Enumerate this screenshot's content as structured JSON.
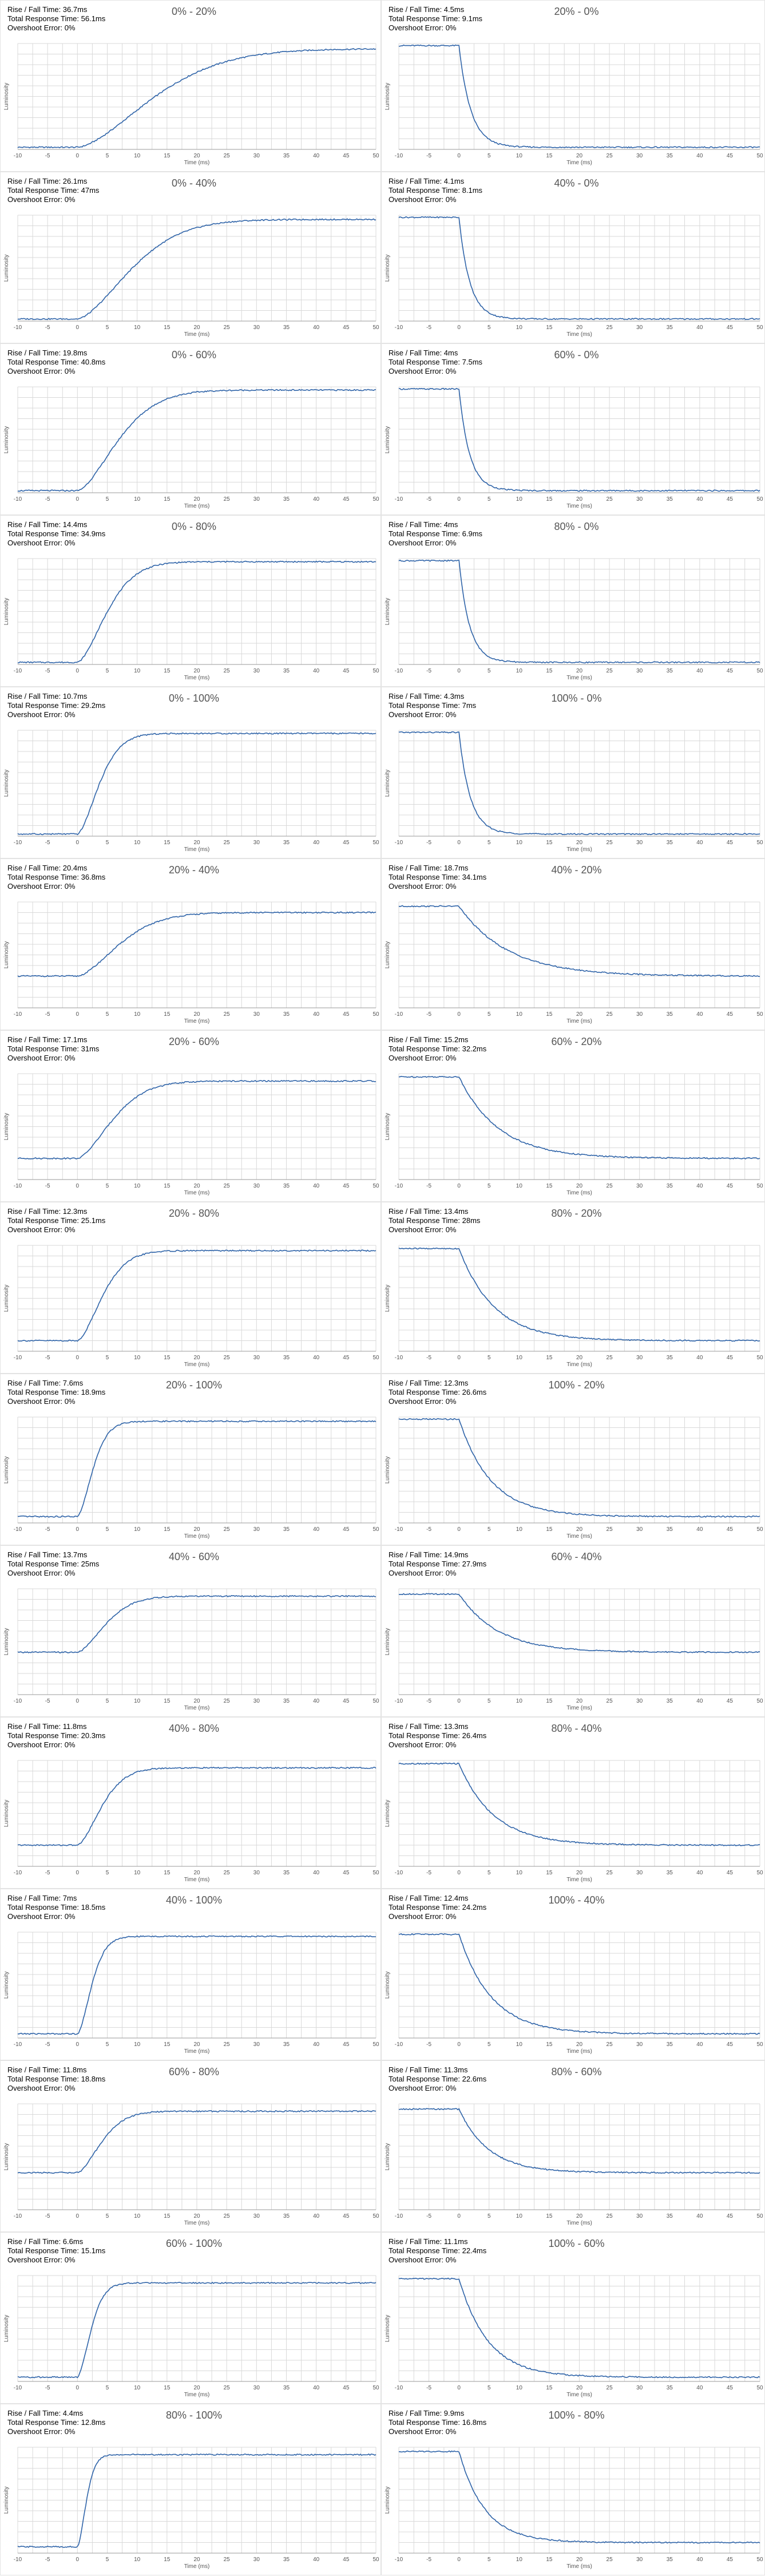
{
  "colors": {
    "line": "#2e63a8",
    "grid": "#d9d9d9",
    "axis": "#9a9a9a",
    "tick": "#555555"
  },
  "chart_data": [
    {
      "type": "line",
      "title": "0% - 20%",
      "rise_fall": "Rise / Fall Time: 36.7ms",
      "total": "Total Response Time: 56.1ms",
      "overshoot": "Overshoot Error: 0%",
      "xlabel": "Time (ms)",
      "ylabel": "Luminosity",
      "xlim": [
        -10,
        50
      ],
      "xticks": [
        -10,
        -5,
        0,
        5,
        10,
        15,
        20,
        25,
        30,
        35,
        40,
        45,
        50
      ],
      "start_level": 0.02,
      "end_level": 0.95,
      "onset_ms": 0,
      "response_ms": 36.7,
      "direction": "rise"
    },
    {
      "type": "line",
      "title": "20% - 0%",
      "rise_fall": "Rise / Fall Time: 4.5ms",
      "total": "Total Response Time: 9.1ms",
      "overshoot": "Overshoot Error: 0%",
      "xlabel": "Time (ms)",
      "ylabel": "Luminosity",
      "xlim": [
        -10,
        50
      ],
      "xticks": [
        -10,
        -5,
        0,
        5,
        10,
        15,
        20,
        25,
        30,
        35,
        40,
        45,
        50
      ],
      "start_level": 0.98,
      "end_level": 0.02,
      "onset_ms": 0,
      "response_ms": 4.5,
      "direction": "fall"
    },
    {
      "type": "line",
      "title": "0% - 40%",
      "rise_fall": "Rise / Fall Time: 26.1ms",
      "total": "Total Response Time: 47ms",
      "overshoot": "Overshoot Error: 0%",
      "xlabel": "Time (ms)",
      "ylabel": "Luminosity",
      "xlim": [
        -10,
        50
      ],
      "xticks": [
        -10,
        -5,
        0,
        5,
        10,
        15,
        20,
        25,
        30,
        35,
        40,
        45,
        50
      ],
      "start_level": 0.02,
      "end_level": 0.96,
      "onset_ms": 0,
      "response_ms": 26.1,
      "direction": "rise"
    },
    {
      "type": "line",
      "title": "40% - 0%",
      "rise_fall": "Rise / Fall Time: 4.1ms",
      "total": "Total Response Time: 8.1ms",
      "overshoot": "Overshoot Error: 0%",
      "xlabel": "Time (ms)",
      "ylabel": "Luminosity",
      "xlim": [
        -10,
        50
      ],
      "xticks": [
        -10,
        -5,
        0,
        5,
        10,
        15,
        20,
        25,
        30,
        35,
        40,
        45,
        50
      ],
      "start_level": 0.98,
      "end_level": 0.02,
      "onset_ms": 0,
      "response_ms": 4.1,
      "direction": "fall"
    },
    {
      "type": "line",
      "title": "0% - 60%",
      "rise_fall": "Rise / Fall Time: 19.8ms",
      "total": "Total Response Time: 40.8ms",
      "overshoot": "Overshoot Error: 0%",
      "xlabel": "Time (ms)",
      "ylabel": "Luminosity",
      "xlim": [
        -10,
        50
      ],
      "xticks": [
        -10,
        -5,
        0,
        5,
        10,
        15,
        20,
        25,
        30,
        35,
        40,
        45,
        50
      ],
      "start_level": 0.02,
      "end_level": 0.97,
      "onset_ms": 0,
      "response_ms": 19.8,
      "direction": "rise"
    },
    {
      "type": "line",
      "title": "60% - 0%",
      "rise_fall": "Rise / Fall Time: 4ms",
      "total": "Total Response Time: 7.5ms",
      "overshoot": "Overshoot Error: 0%",
      "xlabel": "Time (ms)",
      "ylabel": "Luminosity",
      "xlim": [
        -10,
        50
      ],
      "xticks": [
        -10,
        -5,
        0,
        5,
        10,
        15,
        20,
        25,
        30,
        35,
        40,
        45,
        50
      ],
      "start_level": 0.98,
      "end_level": 0.02,
      "onset_ms": 0,
      "response_ms": 4,
      "direction": "fall"
    },
    {
      "type": "line",
      "title": "0% - 80%",
      "rise_fall": "Rise / Fall Time: 14.4ms",
      "total": "Total Response Time: 34.9ms",
      "overshoot": "Overshoot Error: 0%",
      "xlabel": "Time (ms)",
      "ylabel": "Luminosity",
      "xlim": [
        -10,
        50
      ],
      "xticks": [
        -10,
        -5,
        0,
        5,
        10,
        15,
        20,
        25,
        30,
        35,
        40,
        45,
        50
      ],
      "start_level": 0.02,
      "end_level": 0.97,
      "onset_ms": 0,
      "response_ms": 14.4,
      "direction": "rise"
    },
    {
      "type": "line",
      "title": "80% - 0%",
      "rise_fall": "Rise / Fall Time: 4ms",
      "total": "Total Response Time: 6.9ms",
      "overshoot": "Overshoot Error: 0%",
      "xlabel": "Time (ms)",
      "ylabel": "Luminosity",
      "xlim": [
        -10,
        50
      ],
      "xticks": [
        -10,
        -5,
        0,
        5,
        10,
        15,
        20,
        25,
        30,
        35,
        40,
        45,
        50
      ],
      "start_level": 0.98,
      "end_level": 0.02,
      "onset_ms": 0,
      "response_ms": 4,
      "direction": "fall"
    },
    {
      "type": "line",
      "title": "0% - 100%",
      "rise_fall": "Rise / Fall Time: 10.7ms",
      "total": "Total Response Time: 29.2ms",
      "overshoot": "Overshoot Error: 0%",
      "xlabel": "Time (ms)",
      "ylabel": "Luminosity",
      "xlim": [
        -10,
        50
      ],
      "xticks": [
        -10,
        -5,
        0,
        5,
        10,
        15,
        20,
        25,
        30,
        35,
        40,
        45,
        50
      ],
      "start_level": 0.02,
      "end_level": 0.97,
      "onset_ms": 0,
      "response_ms": 10.7,
      "direction": "rise"
    },
    {
      "type": "line",
      "title": "100% - 0%",
      "rise_fall": "Rise / Fall Time: 4.3ms",
      "total": "Total Response Time: 7ms",
      "overshoot": "Overshoot Error: 0%",
      "xlabel": "Time (ms)",
      "ylabel": "Luminosity",
      "xlim": [
        -10,
        50
      ],
      "xticks": [
        -10,
        -5,
        0,
        5,
        10,
        15,
        20,
        25,
        30,
        35,
        40,
        45,
        50
      ],
      "start_level": 0.98,
      "end_level": 0.02,
      "onset_ms": 0,
      "response_ms": 4.3,
      "direction": "fall"
    },
    {
      "type": "line",
      "title": "20% - 40%",
      "rise_fall": "Rise / Fall Time: 20.4ms",
      "total": "Total Response Time: 36.8ms",
      "overshoot": "Overshoot Error: 0%",
      "xlabel": "Time (ms)",
      "ylabel": "Luminosity",
      "xlim": [
        -10,
        50
      ],
      "xticks": [
        -10,
        -5,
        0,
        5,
        10,
        15,
        20,
        25,
        30,
        35,
        40,
        45,
        50
      ],
      "start_level": 0.3,
      "end_level": 0.9,
      "onset_ms": 0,
      "response_ms": 20.4,
      "direction": "rise"
    },
    {
      "type": "line",
      "title": "40% - 20%",
      "rise_fall": "Rise / Fall Time: 18.7ms",
      "total": "Total Response Time: 34.1ms",
      "overshoot": "Overshoot Error: 0%",
      "xlabel": "Time (ms)",
      "ylabel": "Luminosity",
      "xlim": [
        -10,
        50
      ],
      "xticks": [
        -10,
        -5,
        0,
        5,
        10,
        15,
        20,
        25,
        30,
        35,
        40,
        45,
        50
      ],
      "start_level": 0.96,
      "end_level": 0.3,
      "onset_ms": 0,
      "response_ms": 18.7,
      "direction": "fall"
    },
    {
      "type": "line",
      "title": "20% - 60%",
      "rise_fall": "Rise / Fall Time: 17.1ms",
      "total": "Total Response Time: 31ms",
      "overshoot": "Overshoot Error: 0%",
      "xlabel": "Time (ms)",
      "ylabel": "Luminosity",
      "xlim": [
        -10,
        50
      ],
      "xticks": [
        -10,
        -5,
        0,
        5,
        10,
        15,
        20,
        25,
        30,
        35,
        40,
        45,
        50
      ],
      "start_level": 0.2,
      "end_level": 0.93,
      "onset_ms": 0,
      "response_ms": 17.1,
      "direction": "rise"
    },
    {
      "type": "line",
      "title": "60% - 20%",
      "rise_fall": "Rise / Fall Time: 15.2ms",
      "total": "Total Response Time: 32.2ms",
      "overshoot": "Overshoot Error: 0%",
      "xlabel": "Time (ms)",
      "ylabel": "Luminosity",
      "xlim": [
        -10,
        50
      ],
      "xticks": [
        -10,
        -5,
        0,
        5,
        10,
        15,
        20,
        25,
        30,
        35,
        40,
        45,
        50
      ],
      "start_level": 0.97,
      "end_level": 0.2,
      "onset_ms": 0,
      "response_ms": 15.2,
      "direction": "fall"
    },
    {
      "type": "line",
      "title": "20% - 80%",
      "rise_fall": "Rise / Fall Time: 12.3ms",
      "total": "Total Response Time: 25.1ms",
      "overshoot": "Overshoot Error: 0%",
      "xlabel": "Time (ms)",
      "ylabel": "Luminosity",
      "xlim": [
        -10,
        50
      ],
      "xticks": [
        -10,
        -5,
        0,
        5,
        10,
        15,
        20,
        25,
        30,
        35,
        40,
        45,
        50
      ],
      "start_level": 0.1,
      "end_level": 0.95,
      "onset_ms": 0,
      "response_ms": 12.3,
      "direction": "rise"
    },
    {
      "type": "line",
      "title": "80% - 20%",
      "rise_fall": "Rise / Fall Time: 13.4ms",
      "total": "Total Response Time: 28ms",
      "overshoot": "Overshoot Error: 0%",
      "xlabel": "Time (ms)",
      "ylabel": "Luminosity",
      "xlim": [
        -10,
        50
      ],
      "xticks": [
        -10,
        -5,
        0,
        5,
        10,
        15,
        20,
        25,
        30,
        35,
        40,
        45,
        50
      ],
      "start_level": 0.97,
      "end_level": 0.1,
      "onset_ms": 0,
      "response_ms": 13.4,
      "direction": "fall"
    },
    {
      "type": "line",
      "title": "20% - 100%",
      "rise_fall": "Rise / Fall Time: 7.6ms",
      "total": "Total Response Time: 18.9ms",
      "overshoot": "Overshoot Error: 0%",
      "xlabel": "Time (ms)",
      "ylabel": "Luminosity",
      "xlim": [
        -10,
        50
      ],
      "xticks": [
        -10,
        -5,
        0,
        5,
        10,
        15,
        20,
        25,
        30,
        35,
        40,
        45,
        50
      ],
      "start_level": 0.06,
      "end_level": 0.96,
      "onset_ms": 0,
      "response_ms": 7.6,
      "direction": "rise"
    },
    {
      "type": "line",
      "title": "100% - 20%",
      "rise_fall": "Rise / Fall Time: 12.3ms",
      "total": "Total Response Time: 26.6ms",
      "overshoot": "Overshoot Error: 0%",
      "xlabel": "Time (ms)",
      "ylabel": "Luminosity",
      "xlim": [
        -10,
        50
      ],
      "xticks": [
        -10,
        -5,
        0,
        5,
        10,
        15,
        20,
        25,
        30,
        35,
        40,
        45,
        50
      ],
      "start_level": 0.98,
      "end_level": 0.06,
      "onset_ms": 0,
      "response_ms": 12.3,
      "direction": "fall"
    },
    {
      "type": "line",
      "title": "40% - 60%",
      "rise_fall": "Rise / Fall Time: 13.7ms",
      "total": "Total Response Time: 25ms",
      "overshoot": "Overshoot Error: 0%",
      "xlabel": "Time (ms)",
      "ylabel": "Luminosity",
      "xlim": [
        -10,
        50
      ],
      "xticks": [
        -10,
        -5,
        0,
        5,
        10,
        15,
        20,
        25,
        30,
        35,
        40,
        45,
        50
      ],
      "start_level": 0.4,
      "end_level": 0.93,
      "onset_ms": 0,
      "response_ms": 13.7,
      "direction": "rise"
    },
    {
      "type": "line",
      "title": "60% - 40%",
      "rise_fall": "Rise / Fall Time: 14.9ms",
      "total": "Total Response Time: 27.9ms",
      "overshoot": "Overshoot Error: 0%",
      "xlabel": "Time (ms)",
      "ylabel": "Luminosity",
      "xlim": [
        -10,
        50
      ],
      "xticks": [
        -10,
        -5,
        0,
        5,
        10,
        15,
        20,
        25,
        30,
        35,
        40,
        45,
        50
      ],
      "start_level": 0.95,
      "end_level": 0.4,
      "onset_ms": 0,
      "response_ms": 14.9,
      "direction": "fall"
    },
    {
      "type": "line",
      "title": "40% - 80%",
      "rise_fall": "Rise / Fall Time: 11.8ms",
      "total": "Total Response Time: 20.3ms",
      "overshoot": "Overshoot Error: 0%",
      "xlabel": "Time (ms)",
      "ylabel": "Luminosity",
      "xlim": [
        -10,
        50
      ],
      "xticks": [
        -10,
        -5,
        0,
        5,
        10,
        15,
        20,
        25,
        30,
        35,
        40,
        45,
        50
      ],
      "start_level": 0.2,
      "end_level": 0.93,
      "onset_ms": 0,
      "response_ms": 11.8,
      "direction": "rise"
    },
    {
      "type": "line",
      "title": "80% - 40%",
      "rise_fall": "Rise / Fall Time: 13.3ms",
      "total": "Total Response Time: 26.4ms",
      "overshoot": "Overshoot Error: 0%",
      "xlabel": "Time (ms)",
      "ylabel": "Luminosity",
      "xlim": [
        -10,
        50
      ],
      "xticks": [
        -10,
        -5,
        0,
        5,
        10,
        15,
        20,
        25,
        30,
        35,
        40,
        45,
        50
      ],
      "start_level": 0.97,
      "end_level": 0.2,
      "onset_ms": 0,
      "response_ms": 13.3,
      "direction": "fall"
    },
    {
      "type": "line",
      "title": "40% - 100%",
      "rise_fall": "Rise / Fall Time: 7ms",
      "total": "Total Response Time: 18.5ms",
      "overshoot": "Overshoot Error: 0%",
      "xlabel": "Time (ms)",
      "ylabel": "Luminosity",
      "xlim": [
        -10,
        50
      ],
      "xticks": [
        -10,
        -5,
        0,
        5,
        10,
        15,
        20,
        25,
        30,
        35,
        40,
        45,
        50
      ],
      "start_level": 0.04,
      "end_level": 0.96,
      "onset_ms": 0,
      "response_ms": 7,
      "direction": "rise"
    },
    {
      "type": "line",
      "title": "100% - 40%",
      "rise_fall": "Rise / Fall Time: 12.4ms",
      "total": "Total Response Time: 24.2ms",
      "overshoot": "Overshoot Error: 0%",
      "xlabel": "Time (ms)",
      "ylabel": "Luminosity",
      "xlim": [
        -10,
        50
      ],
      "xticks": [
        -10,
        -5,
        0,
        5,
        10,
        15,
        20,
        25,
        30,
        35,
        40,
        45,
        50
      ],
      "start_level": 0.98,
      "end_level": 0.04,
      "onset_ms": 0,
      "response_ms": 12.4,
      "direction": "fall"
    },
    {
      "type": "line",
      "title": "60% - 80%",
      "rise_fall": "Rise / Fall Time: 11.8ms",
      "total": "Total Response Time: 18.8ms",
      "overshoot": "Overshoot Error: 0%",
      "xlabel": "Time (ms)",
      "ylabel": "Luminosity",
      "xlim": [
        -10,
        50
      ],
      "xticks": [
        -10,
        -5,
        0,
        5,
        10,
        15,
        20,
        25,
        30,
        35,
        40,
        45,
        50
      ],
      "start_level": 0.35,
      "end_level": 0.93,
      "onset_ms": 0,
      "response_ms": 11.8,
      "direction": "rise"
    },
    {
      "type": "line",
      "title": "80% - 60%",
      "rise_fall": "Rise / Fall Time: 11.3ms",
      "total": "Total Response Time: 22.6ms",
      "overshoot": "Overshoot Error: 0%",
      "xlabel": "Time (ms)",
      "ylabel": "Luminosity",
      "xlim": [
        -10,
        50
      ],
      "xticks": [
        -10,
        -5,
        0,
        5,
        10,
        15,
        20,
        25,
        30,
        35,
        40,
        45,
        50
      ],
      "start_level": 0.95,
      "end_level": 0.35,
      "onset_ms": 0,
      "response_ms": 11.3,
      "direction": "fall"
    },
    {
      "type": "line",
      "title": "60% - 100%",
      "rise_fall": "Rise / Fall Time: 6.6ms",
      "total": "Total Response Time: 15.1ms",
      "overshoot": "Overshoot Error: 0%",
      "xlabel": "Time (ms)",
      "ylabel": "Luminosity",
      "xlim": [
        -10,
        50
      ],
      "xticks": [
        -10,
        -5,
        0,
        5,
        10,
        15,
        20,
        25,
        30,
        35,
        40,
        45,
        50
      ],
      "start_level": 0.04,
      "end_level": 0.93,
      "onset_ms": 0,
      "response_ms": 6.6,
      "direction": "rise"
    },
    {
      "type": "line",
      "title": "100% - 60%",
      "rise_fall": "Rise / Fall Time: 11.1ms",
      "total": "Total Response Time: 22.4ms",
      "overshoot": "Overshoot Error: 0%",
      "xlabel": "Time (ms)",
      "ylabel": "Luminosity",
      "xlim": [
        -10,
        50
      ],
      "xticks": [
        -10,
        -5,
        0,
        5,
        10,
        15,
        20,
        25,
        30,
        35,
        40,
        45,
        50
      ],
      "start_level": 0.97,
      "end_level": 0.04,
      "onset_ms": 0,
      "response_ms": 11.1,
      "direction": "fall"
    },
    {
      "type": "line",
      "title": "80% - 100%",
      "rise_fall": "Rise / Fall Time: 4.4ms",
      "total": "Total Response Time: 12.8ms",
      "overshoot": "Overshoot Error: 0%",
      "xlabel": "Time (ms)",
      "ylabel": "Luminosity",
      "xlim": [
        -10,
        50
      ],
      "xticks": [
        -10,
        -5,
        0,
        5,
        10,
        15,
        20,
        25,
        30,
        35,
        40,
        45,
        50
      ],
      "start_level": 0.06,
      "end_level": 0.93,
      "onset_ms": 0,
      "response_ms": 4.4,
      "direction": "rise"
    },
    {
      "type": "line",
      "title": "100% - 80%",
      "rise_fall": "Rise / Fall Time: 9.9ms",
      "total": "Total Response Time: 16.8ms",
      "overshoot": "Overshoot Error: 0%",
      "xlabel": "Time (ms)",
      "ylabel": "Luminosity",
      "xlim": [
        -10,
        50
      ],
      "xticks": [
        -10,
        -5,
        0,
        5,
        10,
        15,
        20,
        25,
        30,
        35,
        40,
        45,
        50
      ],
      "start_level": 0.96,
      "end_level": 0.1,
      "onset_ms": 0,
      "response_ms": 9.9,
      "direction": "fall"
    }
  ]
}
